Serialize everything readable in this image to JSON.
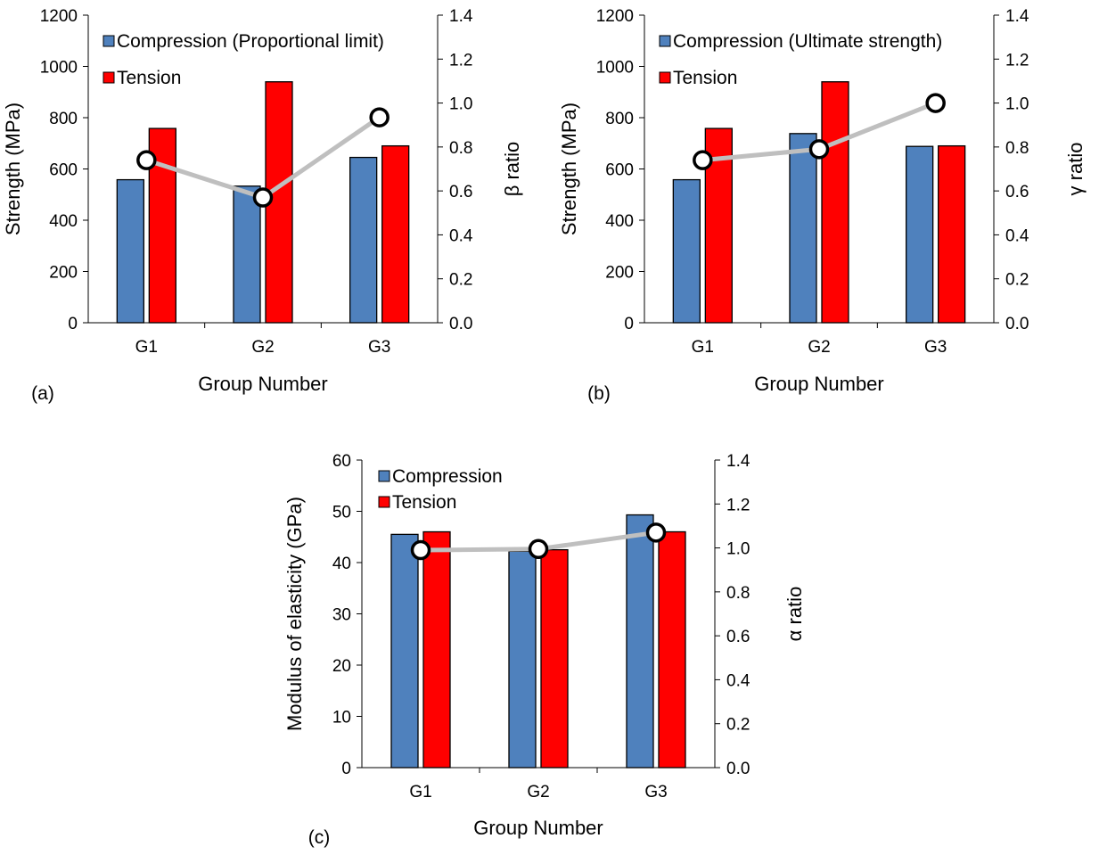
{
  "chart_data": [
    {
      "id": "a",
      "type": "bar",
      "panel_label": "(a)",
      "categories": [
        "G1",
        "G2",
        "G3"
      ],
      "xlabel": "Group Number",
      "ylabel": "Strength (MPa)",
      "y2label": "β ratio",
      "ylim": [
        0,
        1200
      ],
      "y2lim": [
        0,
        1.4
      ],
      "yticks": [
        "0",
        "200",
        "400",
        "600",
        "800",
        "1000",
        "1200"
      ],
      "y2ticks": [
        "0.0",
        "0.2",
        "0.4",
        "0.6",
        "0.8",
        "1.0",
        "1.2",
        "1.4"
      ],
      "grid": false,
      "legend_position": "top-left",
      "series": [
        {
          "name": "Compression (Proportional limit)",
          "type": "bar",
          "axis": "left",
          "color": "#4f81bd",
          "values": [
            558,
            533,
            645
          ]
        },
        {
          "name": "Tension",
          "type": "bar",
          "axis": "left",
          "color": "#ff0000",
          "values": [
            758,
            940,
            690
          ]
        },
        {
          "type": "line",
          "axis": "right",
          "color": "#bfbfbf",
          "values": [
            0.74,
            0.57,
            0.935
          ]
        }
      ]
    },
    {
      "id": "b",
      "type": "bar",
      "panel_label": "(b)",
      "categories": [
        "G1",
        "G2",
        "G3"
      ],
      "xlabel": "Group Number",
      "ylabel": "Strength (MPa)",
      "y2label": "γ ratio",
      "ylim": [
        0,
        1200
      ],
      "y2lim": [
        0,
        1.4
      ],
      "yticks": [
        "0",
        "200",
        "400",
        "600",
        "800",
        "1000",
        "1200"
      ],
      "y2ticks": [
        "0.0",
        "0.2",
        "0.4",
        "0.6",
        "0.8",
        "1.0",
        "1.2",
        "1.4"
      ],
      "grid": false,
      "legend_position": "top-left",
      "series": [
        {
          "name": "Compression (Ultimate strength)",
          "type": "bar",
          "axis": "left",
          "color": "#4f81bd",
          "values": [
            558,
            738,
            688
          ]
        },
        {
          "name": "Tension",
          "type": "bar",
          "axis": "left",
          "color": "#ff0000",
          "values": [
            758,
            940,
            690
          ]
        },
        {
          "type": "line",
          "axis": "right",
          "color": "#bfbfbf",
          "values": [
            0.74,
            0.79,
            1.0
          ]
        }
      ]
    },
    {
      "id": "c",
      "type": "bar",
      "panel_label": "(c)",
      "categories": [
        "G1",
        "G2",
        "G3"
      ],
      "xlabel": "Group Number",
      "ylabel": "Modulus of elasticity (GPa)",
      "y2label": "α ratio",
      "ylim": [
        0,
        60
      ],
      "y2lim": [
        0,
        1.4
      ],
      "yticks": [
        "0",
        "10",
        "20",
        "30",
        "40",
        "50",
        "60"
      ],
      "y2ticks": [
        "0.0",
        "0.2",
        "0.4",
        "0.6",
        "0.8",
        "1.0",
        "1.2",
        "1.4"
      ],
      "grid": false,
      "legend_position": "top-left",
      "series": [
        {
          "name": "Compression",
          "type": "bar",
          "axis": "left",
          "color": "#4f81bd",
          "values": [
            45.5,
            42.2,
            49.3
          ]
        },
        {
          "name": "Tension",
          "type": "bar",
          "axis": "left",
          "color": "#ff0000",
          "values": [
            46.0,
            42.5,
            46.0
          ]
        },
        {
          "type": "line",
          "axis": "right",
          "color": "#bfbfbf",
          "values": [
            0.99,
            0.995,
            1.07
          ]
        }
      ]
    }
  ]
}
